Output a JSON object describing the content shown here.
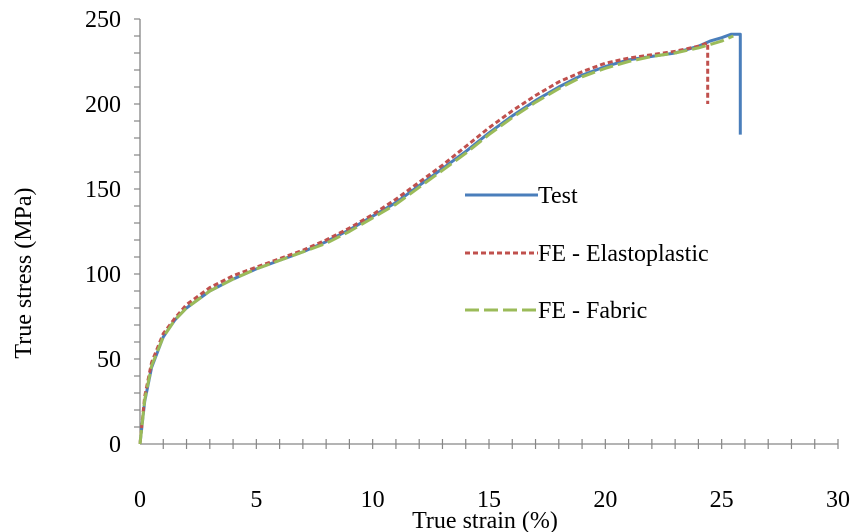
{
  "chart_data": {
    "type": "line",
    "title": "",
    "xlabel": "True strain (%)",
    "ylabel": "True stress (MPa)",
    "xlim": [
      0,
      30
    ],
    "ylim": [
      0,
      250
    ],
    "x_ticks": [
      0,
      5,
      10,
      15,
      20,
      25,
      30
    ],
    "y_ticks": [
      0,
      50,
      100,
      150,
      200,
      250
    ],
    "x_minor_step": 1,
    "y_minor_step": 10,
    "grid": false,
    "legend_position": "center-right",
    "series": [
      {
        "name": "Test",
        "color": "#4a7ebb",
        "dash": "solid",
        "x": [
          0,
          0.2,
          0.5,
          1.0,
          1.5,
          2.0,
          3.0,
          4.0,
          5.0,
          6.0,
          7.0,
          8.0,
          9.0,
          10.0,
          11.0,
          12.0,
          13.0,
          14.0,
          15.0,
          16.0,
          17.0,
          18.0,
          19.0,
          20.0,
          21.0,
          22.0,
          23.0,
          24.0,
          24.5,
          25.0,
          25.4,
          25.8,
          25.8
        ],
        "y": [
          0,
          25,
          45,
          63,
          73,
          80,
          90,
          97,
          103,
          108,
          113,
          119,
          126,
          134,
          142,
          152,
          162,
          172,
          183,
          193,
          202,
          210,
          217,
          222,
          226,
          228,
          230,
          234,
          237,
          239,
          241,
          241,
          182
        ]
      },
      {
        "name": "FE - Elastoplastic",
        "color": "#c0504d",
        "dash": "dotted",
        "x": [
          0,
          0.2,
          0.5,
          1.0,
          1.5,
          2.0,
          3.0,
          4.0,
          5.0,
          6.0,
          7.0,
          8.0,
          9.0,
          10.0,
          11.0,
          12.0,
          13.0,
          14.0,
          15.0,
          16.0,
          17.0,
          18.0,
          19.0,
          20.0,
          21.0,
          22.0,
          23.0,
          24.0,
          24.4,
          24.4
        ],
        "y": [
          0,
          28,
          48,
          65,
          74,
          82,
          92,
          99,
          104,
          109,
          114,
          120,
          127,
          135,
          144,
          154,
          164,
          175,
          186,
          196,
          205,
          213,
          219,
          224,
          227,
          229,
          231,
          234,
          236,
          200
        ]
      },
      {
        "name": "FE - Fabric",
        "color": "#9bbb59",
        "dash": "dashed",
        "x": [
          0,
          0.2,
          0.5,
          1.0,
          1.5,
          2.0,
          3.0,
          4.0,
          5.0,
          6.0,
          7.0,
          8.0,
          9.0,
          10.0,
          11.0,
          12.0,
          13.0,
          14.0,
          15.0,
          16.0,
          17.0,
          18.0,
          19.0,
          20.0,
          21.0,
          22.0,
          23.0,
          24.0,
          25.0,
          25.5
        ],
        "y": [
          0,
          26,
          46,
          63,
          73,
          80,
          90,
          97,
          103,
          108,
          113,
          118,
          125,
          133,
          141,
          151,
          161,
          171,
          182,
          192,
          201,
          209,
          216,
          221,
          225,
          228,
          230,
          233,
          237,
          240
        ]
      }
    ]
  }
}
